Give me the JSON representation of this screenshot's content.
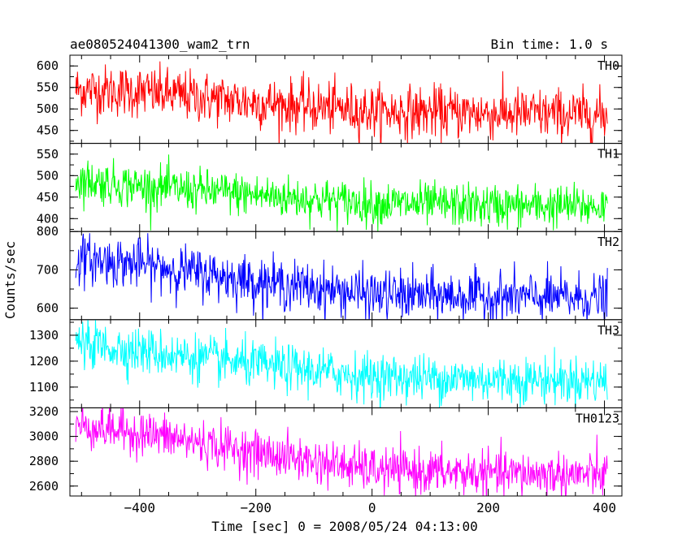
{
  "header": {
    "title": "ae080524041300_wam2_trn",
    "bin_time": "Bin time: 1.0 s"
  },
  "axes": {
    "ylabel": "Counts/sec",
    "xlabel": "Time [sec] 0 = 2008/05/24 04:13:00",
    "x_ticks": [
      "−400",
      "−200",
      "0",
      "200",
      "400"
    ]
  },
  "chart_data": {
    "type": "line",
    "x_range": [
      -510,
      405
    ],
    "xlim": [
      -520,
      430
    ],
    "panels": [
      {
        "name": "TH0",
        "color": "#ff0000",
        "ylim": [
          420,
          625
        ],
        "yticks": [
          450,
          500,
          550,
          600
        ],
        "ytick_labels": [
          "450",
          "500",
          "550",
          "600"
        ],
        "trend": {
          "x": [
            -510,
            -400,
            -200,
            0,
            200,
            405
          ],
          "y": [
            545,
            540,
            515,
            495,
            490,
            485
          ]
        },
        "noise": 30
      },
      {
        "name": "TH1",
        "color": "#00ff00",
        "ylim": [
          370,
          575
        ],
        "yticks": [
          400,
          450,
          500,
          550
        ],
        "ytick_labels": [
          "400",
          "450",
          "500",
          "550"
        ],
        "trend": {
          "x": [
            -510,
            -400,
            -200,
            0,
            200,
            405
          ],
          "y": [
            490,
            475,
            455,
            435,
            430,
            428
          ]
        },
        "noise": 25
      },
      {
        "name": "TH2",
        "color": "#0000ff",
        "ylim": [
          570,
          800
        ],
        "yticks": [
          600,
          700,
          800
        ],
        "ytick_labels": [
          "600",
          "700",
          "800"
        ],
        "trend": {
          "x": [
            -510,
            -400,
            -200,
            0,
            200,
            405
          ],
          "y": [
            730,
            715,
            670,
            635,
            630,
            625
          ]
        },
        "noise": 32
      },
      {
        "name": "TH3",
        "color": "#00ffff",
        "ylim": [
          1020,
          1360
        ],
        "yticks": [
          1100,
          1200,
          1300
        ],
        "ytick_labels": [
          "1100",
          "1200",
          "1300"
        ],
        "trend": {
          "x": [
            -510,
            -400,
            -200,
            0,
            200,
            405
          ],
          "y": [
            1270,
            1240,
            1185,
            1140,
            1130,
            1125
          ]
        },
        "noise": 45
      },
      {
        "name": "TH0123",
        "color": "#ff00ff",
        "ylim": [
          2520,
          3230
        ],
        "yticks": [
          2600,
          2800,
          3000,
          3200
        ],
        "ytick_labels": [
          "2600",
          "2800",
          "3000",
          "3200"
        ],
        "trend": {
          "x": [
            -510,
            -400,
            -200,
            0,
            200,
            405
          ],
          "y": [
            3090,
            3030,
            2870,
            2730,
            2700,
            2690
          ]
        },
        "noise": 90
      }
    ]
  }
}
